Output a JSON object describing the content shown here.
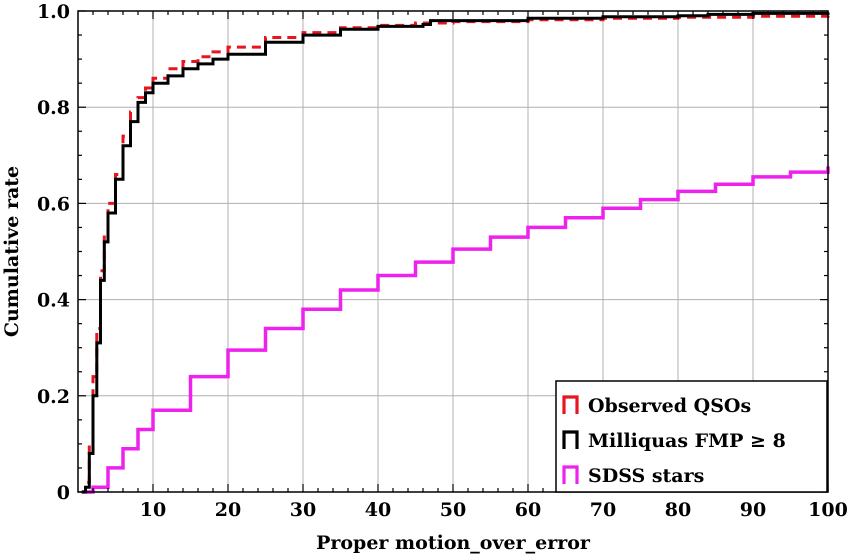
{
  "chart_data": {
    "type": "line",
    "step": true,
    "xlabel": "Proper motion_over_error",
    "ylabel": "Cumulative rate",
    "xlim": [
      0,
      100
    ],
    "ylim": [
      0,
      1.0
    ],
    "x_ticks": [
      10,
      20,
      30,
      40,
      50,
      60,
      70,
      80,
      90,
      100
    ],
    "x_tick_labels": [
      "10",
      "20",
      "30",
      "40",
      "50",
      "60",
      "70",
      "80",
      "90",
      "100"
    ],
    "y_ticks": [
      0,
      0.2,
      0.4,
      0.6,
      0.8,
      1.0
    ],
    "y_tick_labels": [
      "0",
      "0.2",
      "0.4",
      "0.6",
      "0.8",
      "1.0"
    ],
    "grid": true,
    "legend_position": "bottom-right",
    "series": [
      {
        "name": "Observed QSOs",
        "color": "#e8141e",
        "style": "dashed",
        "points": [
          [
            0.5,
            0
          ],
          [
            1,
            0.02
          ],
          [
            1.5,
            0.1
          ],
          [
            2,
            0.24
          ],
          [
            2.5,
            0.34
          ],
          [
            3,
            0.46
          ],
          [
            3.5,
            0.54
          ],
          [
            4,
            0.6
          ],
          [
            5,
            0.66
          ],
          [
            6,
            0.74
          ],
          [
            7,
            0.79
          ],
          [
            8,
            0.82
          ],
          [
            9,
            0.84
          ],
          [
            10,
            0.86
          ],
          [
            12,
            0.88
          ],
          [
            14,
            0.895
          ],
          [
            16,
            0.905
          ],
          [
            18,
            0.915
          ],
          [
            20,
            0.925
          ],
          [
            25,
            0.945
          ],
          [
            30,
            0.955
          ],
          [
            35,
            0.965
          ],
          [
            40,
            0.97
          ],
          [
            45,
            0.975
          ],
          [
            50,
            0.978
          ],
          [
            60,
            0.982
          ],
          [
            70,
            0.985
          ],
          [
            80,
            0.987
          ],
          [
            90,
            0.989
          ],
          [
            100,
            0.99
          ]
        ]
      },
      {
        "name": "Milliquas FMP ≥ 8",
        "color": "#000000",
        "style": "solid",
        "points": [
          [
            0.5,
            0
          ],
          [
            1,
            0.01
          ],
          [
            1.5,
            0.08
          ],
          [
            2,
            0.2
          ],
          [
            2.5,
            0.31
          ],
          [
            3,
            0.44
          ],
          [
            3.5,
            0.52
          ],
          [
            4,
            0.58
          ],
          [
            5,
            0.65
          ],
          [
            6,
            0.72
          ],
          [
            7,
            0.77
          ],
          [
            8,
            0.81
          ],
          [
            9,
            0.83
          ],
          [
            10,
            0.85
          ],
          [
            12,
            0.865
          ],
          [
            14,
            0.88
          ],
          [
            16,
            0.89
          ],
          [
            18,
            0.9
          ],
          [
            20,
            0.91
          ],
          [
            25,
            0.935
          ],
          [
            30,
            0.95
          ],
          [
            35,
            0.962
          ],
          [
            40,
            0.968
          ],
          [
            46,
            0.972
          ],
          [
            47,
            0.98
          ],
          [
            60,
            0.985
          ],
          [
            70,
            0.988
          ],
          [
            80,
            0.99
          ],
          [
            84,
            0.993
          ],
          [
            90,
            0.995
          ],
          [
            100,
            0.997
          ]
        ]
      },
      {
        "name": "SDSS stars",
        "color": "#ee22ee",
        "style": "solid",
        "points": [
          [
            0.5,
            0
          ],
          [
            2,
            0.01
          ],
          [
            4,
            0.05
          ],
          [
            6,
            0.09
          ],
          [
            8,
            0.13
          ],
          [
            10,
            0.17
          ],
          [
            15,
            0.24
          ],
          [
            20,
            0.295
          ],
          [
            25,
            0.34
          ],
          [
            30,
            0.38
          ],
          [
            35,
            0.42
          ],
          [
            40,
            0.45
          ],
          [
            45,
            0.478
          ],
          [
            50,
            0.505
          ],
          [
            55,
            0.53
          ],
          [
            60,
            0.55
          ],
          [
            65,
            0.57
          ],
          [
            70,
            0.59
          ],
          [
            75,
            0.608
          ],
          [
            80,
            0.625
          ],
          [
            85,
            0.64
          ],
          [
            90,
            0.655
          ],
          [
            95,
            0.665
          ],
          [
            100,
            0.677
          ]
        ]
      }
    ]
  }
}
